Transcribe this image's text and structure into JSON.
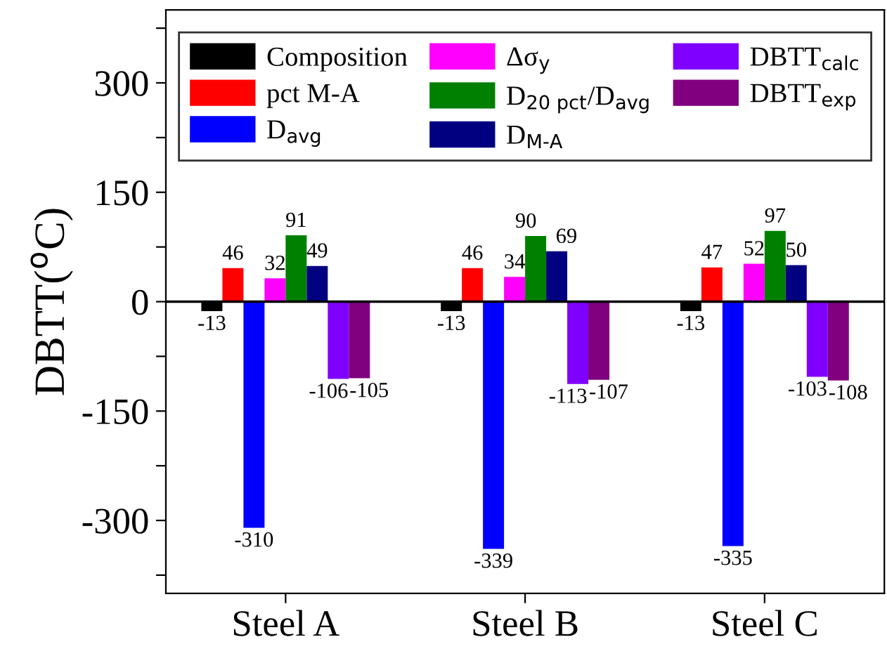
{
  "chart_data": {
    "type": "bar",
    "ylabel": "DBTT($^{o}$C)",
    "categories": [
      "Steel A",
      "Steel B",
      "Steel C"
    ],
    "series": [
      {
        "name": "Composition",
        "color": "#000000",
        "values": [
          -13,
          -13,
          -13
        ]
      },
      {
        "name": "pct M-A",
        "color": "#ff0000",
        "values": [
          46,
          46,
          47
        ]
      },
      {
        "name": "D$_{avg}$",
        "color": "#0000ff",
        "values": [
          -310,
          -339,
          -335
        ]
      },
      {
        "name": "Δσ$_{y}$",
        "color": "#ff00ff",
        "values": [
          32,
          34,
          52
        ]
      },
      {
        "name": "D$_{20 pct}$/D$_{avg}$",
        "color": "#008000",
        "values": [
          91,
          90,
          97
        ]
      },
      {
        "name": "D$_{M-A}$",
        "color": "#000080",
        "values": [
          49,
          69,
          50
        ]
      },
      {
        "name": "DBTT$_{calc}$",
        "color": "#8000ff",
        "values": [
          -106,
          -113,
          -103
        ]
      },
      {
        "name": "DBTT$_{exp}$",
        "color": "#800080",
        "values": [
          -105,
          -107,
          -108
        ]
      }
    ],
    "ylim": [
      -400,
      400
    ],
    "yticks": [
      {
        "value": -375,
        "label": null
      },
      -300,
      {
        "value": -225,
        "label": null
      },
      -150,
      {
        "value": -75,
        "label": null
      },
      0,
      {
        "value": 75,
        "label": null
      },
      150,
      {
        "value": 225,
        "label": null
      },
      300,
      {
        "value": 375,
        "label": null
      }
    ],
    "ref_lines": [
      {
        "axis": "y",
        "value": 0,
        "color": "#000000"
      }
    ],
    "data_labels": true,
    "legend": "top",
    "grid": false
  }
}
